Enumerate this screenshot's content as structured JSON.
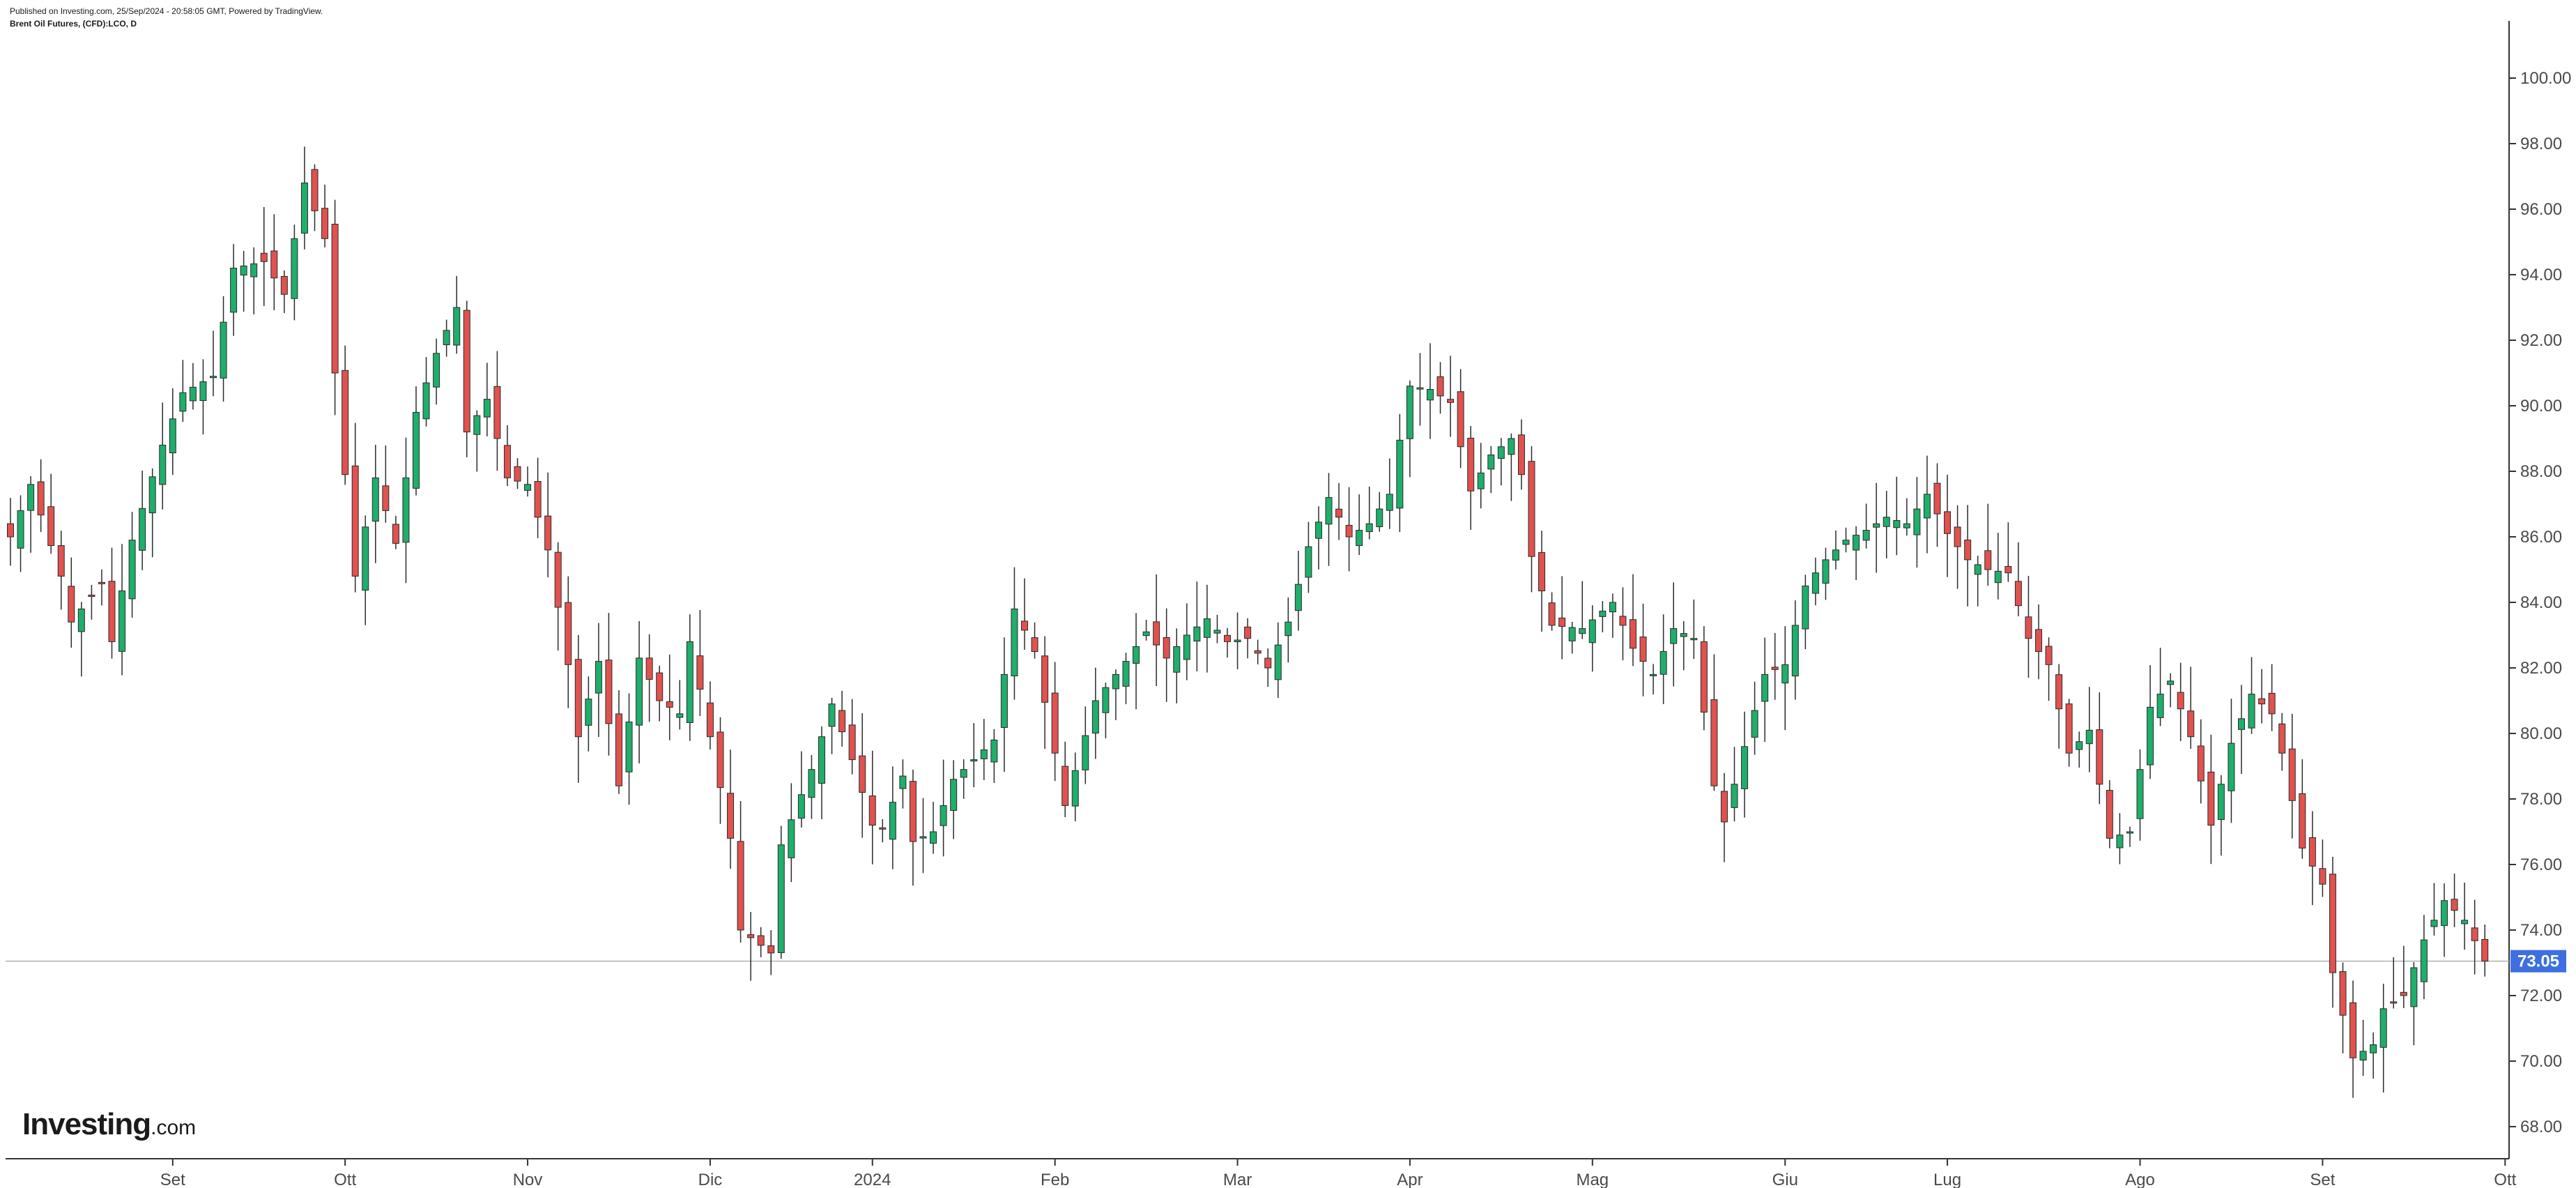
{
  "header": {
    "published": "Published on Investing.com, 25/Sep/2024 - 20:58:05 GMT, Powered by TradingView.",
    "symbol": "Brent Oil Futures, (CFD):LCO, D"
  },
  "logo": {
    "main": "Investing",
    "suffix": ".com"
  },
  "colors": {
    "up": "#1fae6b",
    "down": "#e0524f",
    "wick": "#2b2b2b",
    "price_tag": "#3d6fe0",
    "axis": "#333333"
  },
  "chart_data": {
    "type": "candlestick",
    "title": "",
    "ylim": [
      67,
      101
    ],
    "y_ticks": [
      "68.00",
      "70.00",
      "72.00",
      "74.00",
      "76.00",
      "78.00",
      "80.00",
      "82.00",
      "84.00",
      "86.00",
      "88.00",
      "90.00",
      "92.00",
      "94.00",
      "96.00",
      "98.00",
      "100.00"
    ],
    "x_ticks": [
      {
        "label": "Set",
        "index": 16
      },
      {
        "label": "Ott",
        "index": 33
      },
      {
        "label": "Nov",
        "index": 51
      },
      {
        "label": "Dic",
        "index": 69
      },
      {
        "label": "2024",
        "index": 85
      },
      {
        "label": "Feb",
        "index": 103
      },
      {
        "label": "Mar",
        "index": 121
      },
      {
        "label": "Apr",
        "index": 138
      },
      {
        "label": "Mag",
        "index": 156
      },
      {
        "label": "Giu",
        "index": 175
      },
      {
        "label": "Lug",
        "index": 191
      },
      {
        "label": "Ago",
        "index": 210
      },
      {
        "label": "Set",
        "index": 228
      },
      {
        "label": "Ott",
        "index": 246
      }
    ],
    "last_price": "73.05",
    "last_value": 73.05,
    "waypoints": [
      [
        0,
        86.0
      ],
      [
        2,
        87.6
      ],
      [
        5,
        84.8
      ],
      [
        6,
        83.4
      ],
      [
        9,
        84.6
      ],
      [
        10,
        82.8
      ],
      [
        12,
        85.9
      ],
      [
        15,
        88.8
      ],
      [
        17,
        90.4
      ],
      [
        20,
        90.9
      ],
      [
        22,
        94.2
      ],
      [
        25,
        94.4
      ],
      [
        27,
        93.4
      ],
      [
        29,
        96.8
      ],
      [
        31,
        95.1
      ],
      [
        32,
        91.0
      ],
      [
        34,
        84.8
      ],
      [
        36,
        87.8
      ],
      [
        38,
        85.8
      ],
      [
        40,
        89.8
      ],
      [
        42,
        91.6
      ],
      [
        44,
        93.0
      ],
      [
        45,
        89.2
      ],
      [
        47,
        90.2
      ],
      [
        49,
        87.8
      ],
      [
        51,
        87.6
      ],
      [
        53,
        85.6
      ],
      [
        55,
        82.1
      ],
      [
        56,
        79.9
      ],
      [
        58,
        82.2
      ],
      [
        60,
        78.4
      ],
      [
        62,
        82.3
      ],
      [
        64,
        81.0
      ],
      [
        66,
        80.6
      ],
      [
        67,
        82.8
      ],
      [
        69,
        79.9
      ],
      [
        71,
        76.8
      ],
      [
        72,
        74.0
      ],
      [
        75,
        73.3
      ],
      [
        76,
        76.6
      ],
      [
        79,
        78.9
      ],
      [
        81,
        80.9
      ],
      [
        83,
        79.2
      ],
      [
        85,
        77.2
      ],
      [
        86,
        77.1
      ],
      [
        88,
        78.7
      ],
      [
        89,
        76.7
      ],
      [
        91,
        77.0
      ],
      [
        93,
        78.6
      ],
      [
        95,
        79.2
      ],
      [
        97,
        79.8
      ],
      [
        99,
        83.8
      ],
      [
        101,
        82.5
      ],
      [
        103,
        79.4
      ],
      [
        104,
        77.8
      ],
      [
        107,
        81.0
      ],
      [
        110,
        82.2
      ],
      [
        112,
        83.1
      ],
      [
        114,
        82.3
      ],
      [
        116,
        83.0
      ],
      [
        118,
        83.5
      ],
      [
        120,
        82.8
      ],
      [
        122,
        82.9
      ],
      [
        124,
        82.0
      ],
      [
        126,
        83.4
      ],
      [
        128,
        85.7
      ],
      [
        130,
        87.2
      ],
      [
        132,
        86.0
      ],
      [
        134,
        86.4
      ],
      [
        136,
        87.3
      ],
      [
        138,
        90.6
      ],
      [
        140,
        90.5
      ],
      [
        142,
        90.1
      ],
      [
        144,
        87.4
      ],
      [
        146,
        88.5
      ],
      [
        148,
        89.0
      ],
      [
        149,
        87.9
      ],
      [
        150,
        85.4
      ],
      [
        152,
        83.3
      ],
      [
        155,
        83.2
      ],
      [
        158,
        84.0
      ],
      [
        160,
        82.6
      ],
      [
        162,
        81.8
      ],
      [
        164,
        83.2
      ],
      [
        166,
        82.9
      ],
      [
        168,
        78.4
      ],
      [
        169,
        77.3
      ],
      [
        171,
        79.6
      ],
      [
        173,
        81.8
      ],
      [
        175,
        82.1
      ],
      [
        177,
        84.5
      ],
      [
        179,
        85.3
      ],
      [
        181,
        85.9
      ],
      [
        183,
        86.2
      ],
      [
        185,
        86.6
      ],
      [
        187,
        86.4
      ],
      [
        189,
        87.3
      ],
      [
        191,
        86.1
      ],
      [
        193,
        85.3
      ],
      [
        195,
        85.0
      ],
      [
        197,
        84.9
      ],
      [
        199,
        82.9
      ],
      [
        201,
        82.1
      ],
      [
        203,
        79.4
      ],
      [
        205,
        80.1
      ],
      [
        207,
        76.8
      ],
      [
        209,
        77.0
      ],
      [
        211,
        80.8
      ],
      [
        213,
        81.6
      ],
      [
        215,
        79.9
      ],
      [
        217,
        77.2
      ],
      [
        219,
        79.7
      ],
      [
        221,
        81.2
      ],
      [
        223,
        80.6
      ],
      [
        224,
        79.4
      ],
      [
        226,
        76.5
      ],
      [
        228,
        75.4
      ],
      [
        229,
        72.7
      ],
      [
        231,
        70.1
      ],
      [
        233,
        70.5
      ],
      [
        234,
        71.6
      ],
      [
        236,
        72.0
      ],
      [
        238,
        73.7
      ],
      [
        240,
        74.9
      ],
      [
        242,
        74.3
      ],
      [
        244,
        73.05
      ]
    ]
  }
}
